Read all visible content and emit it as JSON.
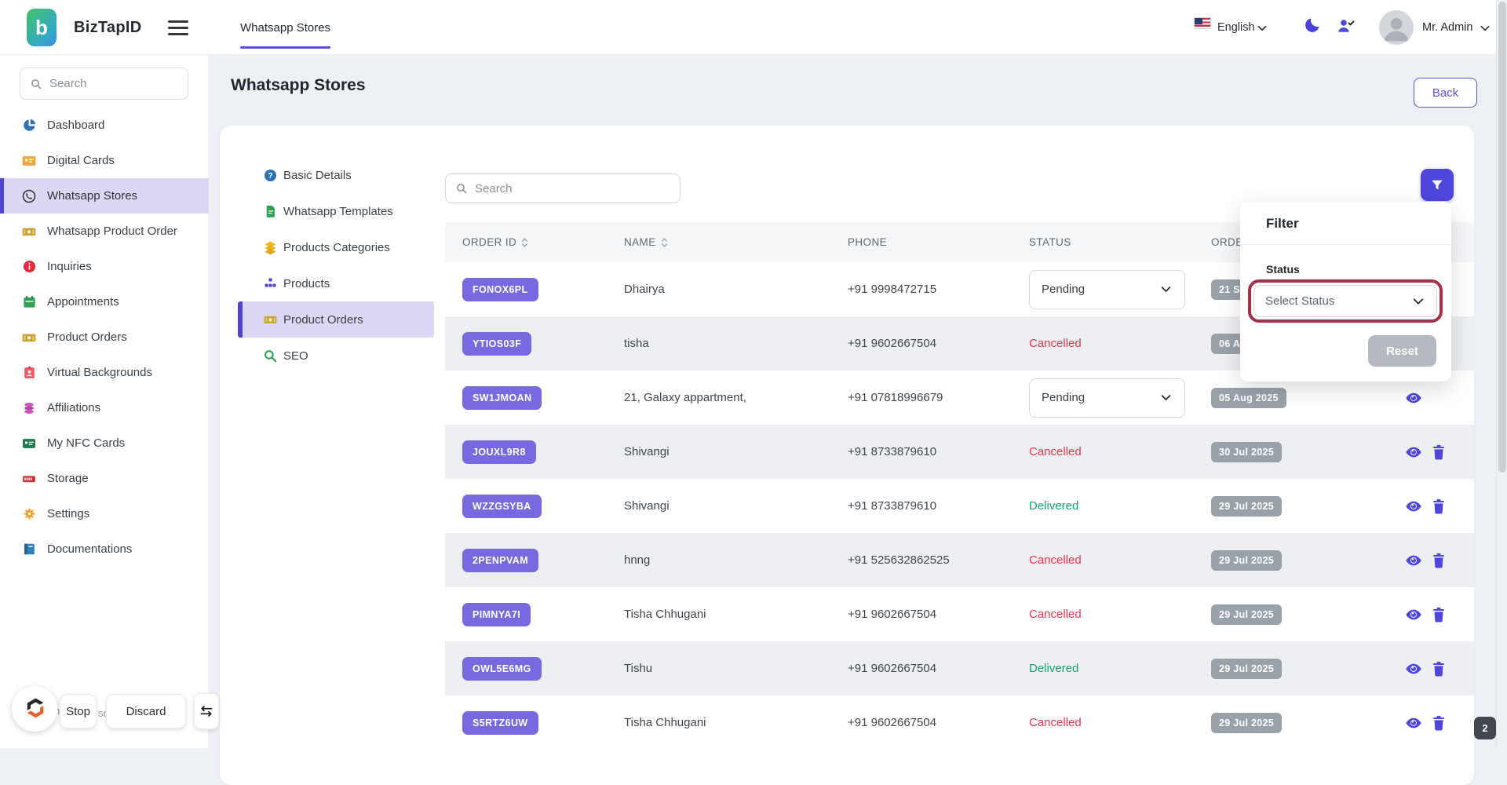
{
  "colors": {
    "accent": "#4f46dc",
    "accent_dark": "#5144d3",
    "order_badge_purple": "#776ae0",
    "sidebar_active_bg": "#dcd7f5",
    "status_cancelled": "#e5364a",
    "status_delivered": "#10a56f",
    "date_badge_gray": "#99a1a9",
    "highlight_ring": "#a33049"
  },
  "topbar": {
    "brand": "BizTapID",
    "logo_letter": "b",
    "tab": "Whatsapp Stores",
    "language": "English",
    "user_name": "Mr. Admin"
  },
  "sidebar": {
    "search_placeholder": "Search",
    "items": [
      {
        "label": "Dashboard",
        "icon": "pie-chart",
        "active": false
      },
      {
        "label": "Digital Cards",
        "icon": "digital-card",
        "active": false
      },
      {
        "label": "Whatsapp Stores",
        "icon": "whatsapp",
        "active": true
      },
      {
        "label": "Whatsapp Product Order",
        "icon": "banknote",
        "active": false
      },
      {
        "label": "Inquiries",
        "icon": "info-circle",
        "active": false
      },
      {
        "label": "Appointments",
        "icon": "calendar",
        "active": false
      },
      {
        "label": "Product Orders",
        "icon": "banknote",
        "active": false
      },
      {
        "label": "Virtual Backgrounds",
        "icon": "id-badge",
        "active": false
      },
      {
        "label": "Affiliations",
        "icon": "coins",
        "active": false
      },
      {
        "label": "My NFC Cards",
        "icon": "nfc-card",
        "active": false
      },
      {
        "label": "Storage",
        "icon": "storage-server",
        "active": false
      },
      {
        "label": "Settings",
        "icon": "gear",
        "active": false
      },
      {
        "label": "Documentations",
        "icon": "book",
        "active": false
      }
    ]
  },
  "page": {
    "title": "Whatsapp Stores",
    "back_label": "Back"
  },
  "subnav": {
    "items": [
      {
        "label": "Basic Details",
        "icon": "question-circle",
        "active": false
      },
      {
        "label": "Whatsapp Templates",
        "icon": "template-file",
        "active": false
      },
      {
        "label": "Products Categories",
        "icon": "layers",
        "active": false
      },
      {
        "label": "Products",
        "icon": "product-blocks",
        "active": false
      },
      {
        "label": "Product Orders",
        "icon": "banknote",
        "active": true
      },
      {
        "label": "SEO",
        "icon": "seo-magnifier",
        "active": false
      }
    ]
  },
  "orders": {
    "search_placeholder": "Search",
    "columns": [
      {
        "label": "ORDER ID",
        "sortable": true
      },
      {
        "label": "NAME",
        "sortable": true
      },
      {
        "label": "PHONE",
        "sortable": false
      },
      {
        "label": "STATUS",
        "sortable": false
      },
      {
        "label": "ORDER DATE",
        "sortable": false
      },
      {
        "label": "",
        "sortable": false
      }
    ],
    "rows": [
      {
        "order_id": "FONOX6PL",
        "name": "Dhairya",
        "phone": "+91 9998472715",
        "status": "Pending",
        "status_kind": "select",
        "date": "21 Sep 2025",
        "actions": [
          "view"
        ]
      },
      {
        "order_id": "YTIOS03F",
        "name": "tisha",
        "phone": "+91 9602667504",
        "status": "Cancelled",
        "status_kind": "cancelled",
        "date": "06 Aug 2025",
        "actions": [
          "view",
          "delete"
        ]
      },
      {
        "order_id": "SW1JMOAN",
        "name": "21, Galaxy appartment,",
        "phone": "+91 07818996679",
        "status": "Pending",
        "status_kind": "select",
        "date": "05 Aug 2025",
        "actions": [
          "view"
        ]
      },
      {
        "order_id": "JOUXL9R8",
        "name": "Shivangi",
        "phone": "+91 8733879610",
        "status": "Cancelled",
        "status_kind": "cancelled",
        "date": "30 Jul 2025",
        "actions": [
          "view",
          "delete"
        ]
      },
      {
        "order_id": "WZZGSYBA",
        "name": "Shivangi",
        "phone": "+91 8733879610",
        "status": "Delivered",
        "status_kind": "delivered",
        "date": "29 Jul 2025",
        "actions": [
          "view",
          "delete"
        ]
      },
      {
        "order_id": "2PENPVAM",
        "name": "hnng",
        "phone": "+91 525632862525",
        "status": "Cancelled",
        "status_kind": "cancelled",
        "date": "29 Jul 2025",
        "actions": [
          "view",
          "delete"
        ]
      },
      {
        "order_id": "PIMNYA7I",
        "name": "Tisha Chhugani",
        "phone": "+91 9602667504",
        "status": "Cancelled",
        "status_kind": "cancelled",
        "date": "29 Jul 2025",
        "actions": [
          "view",
          "delete"
        ]
      },
      {
        "order_id": "OWL5E6MG",
        "name": "Tishu",
        "phone": "+91 9602667504",
        "status": "Delivered",
        "status_kind": "delivered",
        "date": "29 Jul 2025",
        "actions": [
          "view",
          "delete"
        ]
      },
      {
        "order_id": "S5RTZ6UW",
        "name": "Tisha Chhugani",
        "phone": "+91 9602667504",
        "status": "Cancelled",
        "status_kind": "cancelled",
        "date": "29 Jul 2025",
        "actions": [
          "view",
          "delete"
        ]
      }
    ]
  },
  "filter_panel": {
    "title": "Filter",
    "status_label": "Status",
    "status_placeholder": "Select Status",
    "reset_label": "Reset"
  },
  "recorder_overlay": {
    "stop_label": "Stop",
    "discard_label": "Discard",
    "text_fragment_1": "n",
    "text_fragment_2": "so",
    "badge_count": "2"
  }
}
